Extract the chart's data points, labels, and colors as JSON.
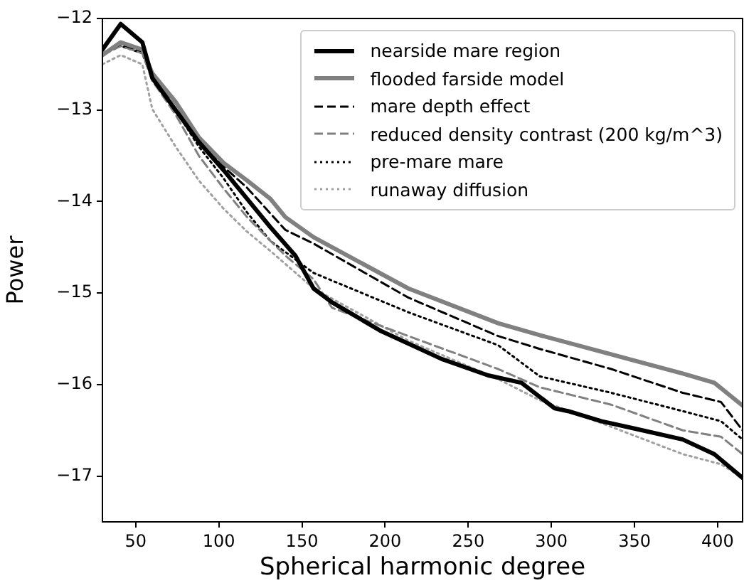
{
  "chart_data": {
    "type": "line",
    "xlabel": "Spherical harmonic degree",
    "ylabel": "Power",
    "xlim": [
      30,
      415
    ],
    "xticks": [
      50,
      100,
      150,
      200,
      250,
      300,
      350,
      400
    ],
    "ylim": [
      -17.5,
      -12
    ],
    "yticks": [
      {
        "value": -12,
        "label": "−12"
      },
      {
        "value": -13,
        "label": "−13"
      },
      {
        "value": -14,
        "label": "−14"
      },
      {
        "value": -15,
        "label": "−15"
      },
      {
        "value": -16,
        "label": "−16"
      },
      {
        "value": -17,
        "label": "−17"
      }
    ],
    "grid": false,
    "legend": "top right",
    "marker": "none",
    "series": [
      {
        "name": "nearside mare region",
        "color": "#000000",
        "line_style": "solid",
        "x": [
          30,
          41,
          54,
          60,
          74,
          88,
          103,
          117,
          131,
          146,
          157,
          168,
          197,
          234,
          262,
          282,
          302,
          310,
          330,
          350,
          379,
          398,
          415
        ],
        "values": [
          -12.34,
          -12.06,
          -12.26,
          -12.65,
          -13.0,
          -13.35,
          -13.66,
          -13.97,
          -14.28,
          -14.59,
          -14.95,
          -15.1,
          -15.41,
          -15.72,
          -15.9,
          -15.98,
          -16.26,
          -16.29,
          -16.4,
          -16.48,
          -16.6,
          -16.76,
          -17.02
        ]
      },
      {
        "name": "flooded farside model",
        "color": "#808080",
        "line_style": "solid",
        "x": [
          30,
          41,
          54,
          60,
          74,
          88,
          103,
          117,
          131,
          140,
          157,
          214,
          268,
          293,
          336,
          379,
          398,
          415
        ],
        "values": [
          -12.4,
          -12.26,
          -12.34,
          -12.6,
          -12.91,
          -13.3,
          -13.58,
          -13.77,
          -13.97,
          -14.17,
          -14.39,
          -14.95,
          -15.33,
          -15.46,
          -15.67,
          -15.88,
          -15.98,
          -16.23
        ]
      },
      {
        "name": "mare depth effect",
        "color": "#000000",
        "line_style": "dashed",
        "x": [
          30,
          41,
          54,
          60,
          74,
          88,
          103,
          117,
          140,
          157,
          214,
          268,
          293,
          336,
          379,
          402,
          415
        ],
        "values": [
          -12.4,
          -12.28,
          -12.36,
          -12.62,
          -12.93,
          -13.33,
          -13.62,
          -13.85,
          -14.31,
          -14.46,
          -15.05,
          -15.47,
          -15.61,
          -15.83,
          -16.09,
          -16.19,
          -16.5
        ]
      },
      {
        "name": "reduced density contrast (200 kg/m^3)",
        "color": "#808080",
        "line_style": "dashed",
        "x": [
          30,
          41,
          54,
          60,
          74,
          88,
          103,
          117,
          131,
          140,
          157,
          168,
          214,
          268,
          293,
          336,
          379,
          402,
          415
        ],
        "values": [
          -12.4,
          -12.3,
          -12.38,
          -12.68,
          -13.05,
          -13.5,
          -13.86,
          -14.17,
          -14.43,
          -14.59,
          -14.85,
          -15.16,
          -15.47,
          -15.83,
          -16.03,
          -16.22,
          -16.5,
          -16.57,
          -16.76
        ]
      },
      {
        "name": "pre-mare mare",
        "color": "#000000",
        "line_style": "dotted",
        "x": [
          30,
          41,
          54,
          60,
          74,
          88,
          103,
          117,
          131,
          157,
          214,
          268,
          293,
          336,
          379,
          402,
          415
        ],
        "values": [
          -12.38,
          -12.3,
          -12.38,
          -12.66,
          -13.0,
          -13.4,
          -13.75,
          -14.12,
          -14.43,
          -14.78,
          -15.21,
          -15.57,
          -15.91,
          -16.09,
          -16.29,
          -16.4,
          -16.6
        ]
      },
      {
        "name": "runaway diffusion",
        "color": "#a0a0a0",
        "line_style": "dotted",
        "x": [
          30,
          41,
          54,
          60,
          74,
          88,
          103,
          117,
          131,
          157,
          214,
          268,
          293,
          330,
          379,
          402,
          415
        ],
        "values": [
          -12.5,
          -12.4,
          -12.5,
          -12.99,
          -13.4,
          -13.77,
          -14.08,
          -14.33,
          -14.54,
          -14.95,
          -15.52,
          -15.94,
          -16.17,
          -16.42,
          -16.76,
          -16.87,
          -17.02
        ]
      }
    ]
  }
}
